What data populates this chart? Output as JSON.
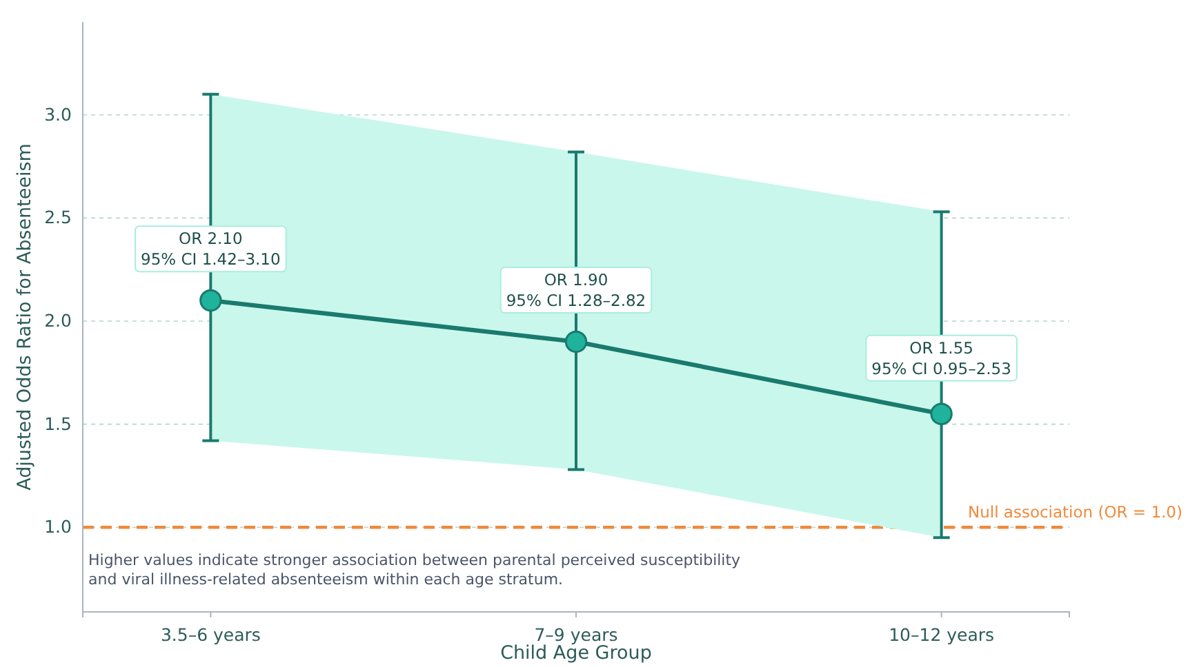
{
  "chart_data": {
    "type": "line",
    "xlabel": "Child Age Group",
    "ylabel": "Adjusted Odds Ratio for Absenteeism",
    "categories": [
      "3.5–6 years",
      "7–9 years",
      "10–12 years"
    ],
    "series": [
      {
        "color": "#1a7a6e",
        "values": [
          2.1,
          1.9,
          1.55
        ],
        "errors": [
          [
            1.42,
            3.1
          ],
          [
            1.28,
            2.82
          ],
          [
            0.95,
            2.53
          ]
        ],
        "lower": [
          1.42,
          1.28,
          0.95
        ],
        "upper": [
          3.1,
          2.82,
          2.53
        ]
      }
    ],
    "ylim": [
      0.59,
      3.45
    ],
    "yticks": [
      {
        "value": 1,
        "label": "1.0"
      },
      {
        "value": 1.5,
        "label": "1.5"
      },
      {
        "value": 2,
        "label": "2.0"
      },
      {
        "value": 2.5,
        "label": "2.5"
      },
      {
        "value": 3,
        "label": "3.0"
      }
    ],
    "grid": "y",
    "marker": "circle",
    "line_style": "solid",
    "ref_lines": [
      {
        "axis": "y",
        "value": 1,
        "label": "Null association (OR = 1.0)",
        "color": "#f08a3c",
        "line_style": "dashed"
      }
    ],
    "annotations": [
      {
        "text": "OR 2.10\n95% CI 1.42–3.10",
        "x": "3.5–6 years",
        "y": 2.35
      },
      {
        "text": "OR 1.90\n95% CI 1.28–2.82",
        "x": "7–9 years",
        "y": 2.15
      },
      {
        "text": "OR 1.55\n95% CI 0.95–2.53",
        "x": "10–12 years",
        "y": 1.82
      },
      "Higher values indicate stronger association between parental perceived susceptibility\nand viral illness-related absenteeism within each age stratum."
    ]
  }
}
